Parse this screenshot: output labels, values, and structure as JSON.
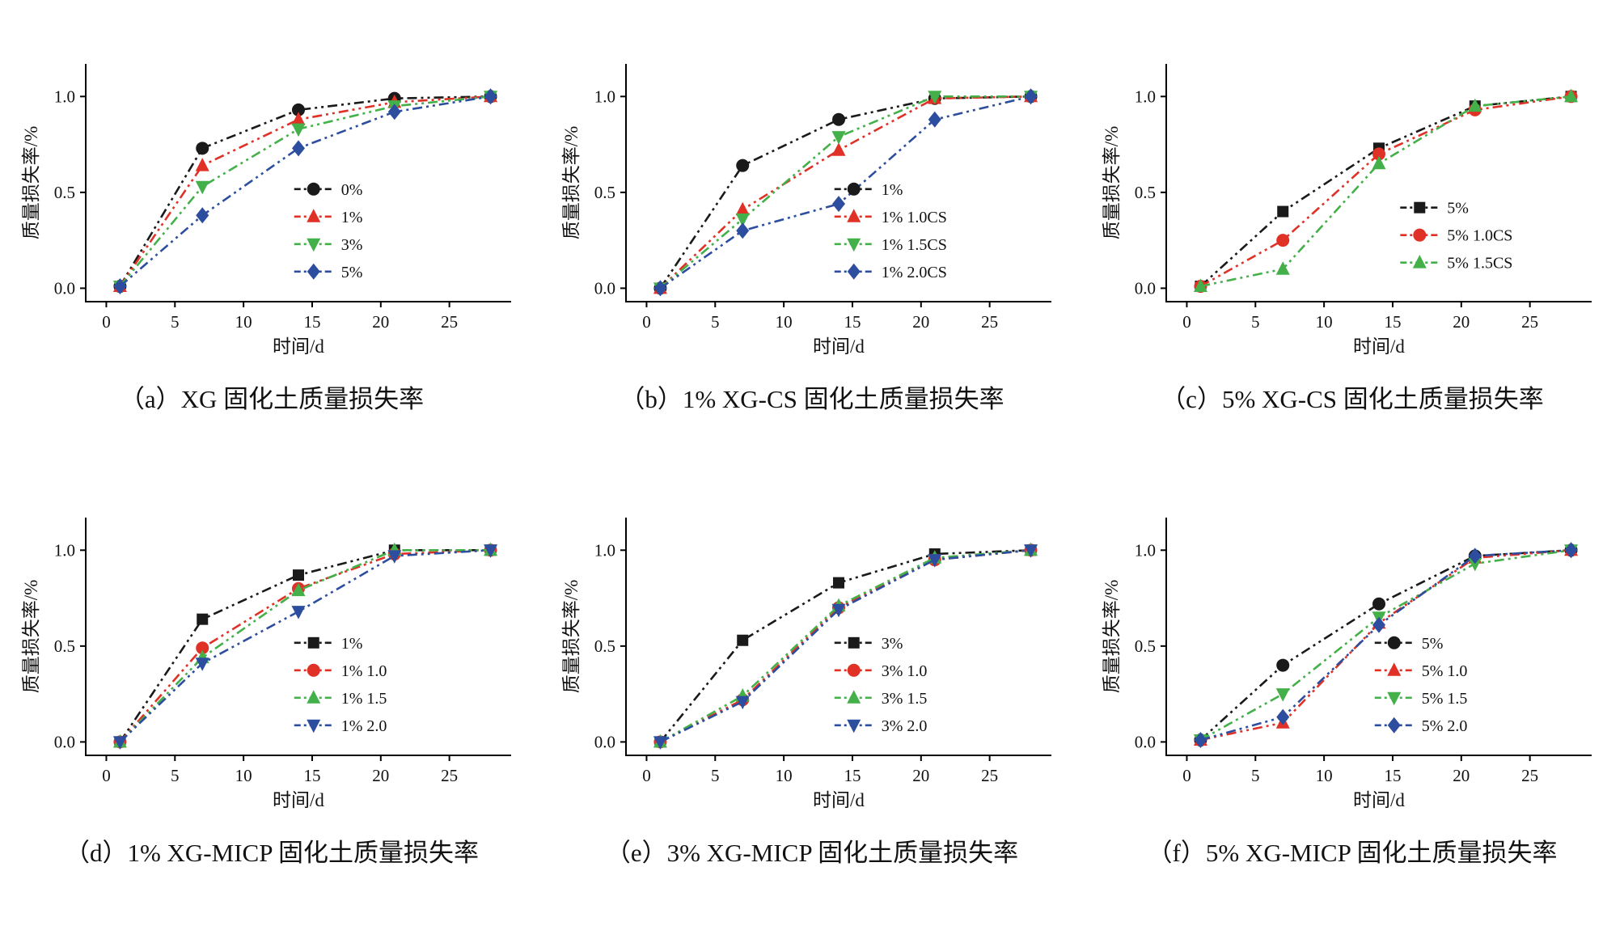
{
  "page": {
    "background": "#ffffff"
  },
  "chart_data": [
    {
      "id": "a",
      "type": "line",
      "caption": "（a）XG 固化土质量损失率",
      "xlabel": "时间/d",
      "ylabel": "质量损失率/%",
      "x_ticks": [
        0,
        5,
        10,
        15,
        20,
        25
      ],
      "y_ticks": [
        0,
        0.5,
        1
      ],
      "xlim": [
        -1.5,
        29.5
      ],
      "ylim": [
        -0.07,
        1.17
      ],
      "grid": false,
      "legend": {
        "fx": 0.49,
        "fy": 0.7
      },
      "x": [
        1,
        7,
        14,
        21,
        28
      ],
      "series": [
        {
          "name": "0%",
          "color": "#1a1a1a",
          "marker": "circle",
          "values": [
            0.01,
            0.73,
            0.93,
            0.99,
            1.0
          ]
        },
        {
          "name": "1%",
          "color": "#e03127",
          "marker": "triangle-up",
          "values": [
            0.01,
            0.64,
            0.88,
            0.97,
            1.0
          ]
        },
        {
          "name": "3%",
          "color": "#44b049",
          "marker": "triangle-down",
          "values": [
            0.01,
            0.53,
            0.83,
            0.95,
            1.0
          ]
        },
        {
          "name": "5%",
          "color": "#2d4e9e",
          "marker": "diamond",
          "values": [
            0.01,
            0.38,
            0.73,
            0.92,
            1.0
          ]
        }
      ]
    },
    {
      "id": "b",
      "type": "line",
      "caption": "（b）1% XG-CS 固化土质量损失率",
      "xlabel": "时间/d",
      "ylabel": "质量损失率/%",
      "x_ticks": [
        0,
        5,
        10,
        15,
        20,
        25
      ],
      "y_ticks": [
        0,
        0.5,
        1
      ],
      "xlim": [
        -1.5,
        29.5
      ],
      "ylim": [
        -0.07,
        1.17
      ],
      "grid": false,
      "legend": {
        "fx": 0.49,
        "fy": 0.7
      },
      "x": [
        1,
        7,
        14,
        21,
        28
      ],
      "series": [
        {
          "name": "1%",
          "color": "#1a1a1a",
          "marker": "circle",
          "values": [
            0.0,
            0.64,
            0.88,
            0.99,
            1.0
          ]
        },
        {
          "name": "1% 1.0CS",
          "color": "#e03127",
          "marker": "triangle-up",
          "values": [
            0.0,
            0.41,
            0.72,
            0.99,
            1.0
          ]
        },
        {
          "name": "1% 1.5CS",
          "color": "#44b049",
          "marker": "triangle-down",
          "values": [
            0.0,
            0.36,
            0.79,
            1.0,
            1.0
          ]
        },
        {
          "name": "1% 2.0CS",
          "color": "#2d4e9e",
          "marker": "diamond",
          "values": [
            0.0,
            0.3,
            0.44,
            0.88,
            1.0
          ]
        }
      ]
    },
    {
      "id": "c",
      "type": "line",
      "caption": "（c）5% XG-CS 固化土质量损失率",
      "xlabel": "时间/d",
      "ylabel": "质量损失率/%",
      "x_ticks": [
        0,
        5,
        10,
        15,
        20,
        25
      ],
      "y_ticks": [
        0,
        0.5,
        1
      ],
      "xlim": [
        -1.5,
        29.5
      ],
      "ylim": [
        -0.07,
        1.17
      ],
      "grid": false,
      "legend": {
        "fx": 0.55,
        "fy": 0.72
      },
      "x": [
        1,
        7,
        14,
        21,
        28
      ],
      "series": [
        {
          "name": "5%",
          "color": "#1a1a1a",
          "marker": "square",
          "values": [
            0.01,
            0.4,
            0.73,
            0.95,
            1.0
          ]
        },
        {
          "name": "5% 1.0CS",
          "color": "#e03127",
          "marker": "circle",
          "values": [
            0.01,
            0.25,
            0.7,
            0.93,
            1.0
          ]
        },
        {
          "name": "5% 1.5CS",
          "color": "#44b049",
          "marker": "triangle-up",
          "values": [
            0.01,
            0.1,
            0.65,
            0.95,
            1.0
          ]
        }
      ]
    },
    {
      "id": "d",
      "type": "line",
      "caption": "（d）1% XG-MICP 固化土质量损失率",
      "xlabel": "时间/d",
      "ylabel": "质量损失率/%",
      "x_ticks": [
        0,
        5,
        10,
        15,
        20,
        25
      ],
      "y_ticks": [
        0,
        0.5,
        1
      ],
      "xlim": [
        -1.5,
        29.5
      ],
      "ylim": [
        -0.07,
        1.17
      ],
      "grid": false,
      "legend": {
        "fx": 0.49,
        "fy": 0.7
      },
      "x": [
        1,
        7,
        14,
        21,
        28
      ],
      "series": [
        {
          "name": "1%",
          "color": "#1a1a1a",
          "marker": "square",
          "values": [
            0.0,
            0.64,
            0.87,
            1.0,
            1.0
          ]
        },
        {
          "name": "1% 1.0",
          "color": "#e03127",
          "marker": "circle",
          "values": [
            0.0,
            0.49,
            0.8,
            0.98,
            1.0
          ]
        },
        {
          "name": "1% 1.5",
          "color": "#44b049",
          "marker": "triangle-up",
          "values": [
            0.0,
            0.44,
            0.79,
            1.0,
            1.0
          ]
        },
        {
          "name": "1% 2.0",
          "color": "#2d4e9e",
          "marker": "triangle-down",
          "values": [
            0.0,
            0.41,
            0.68,
            0.97,
            1.0
          ]
        }
      ]
    },
    {
      "id": "e",
      "type": "line",
      "caption": "（e）3% XG-MICP 固化土质量损失率",
      "xlabel": "时间/d",
      "ylabel": "质量损失率/%",
      "x_ticks": [
        0,
        5,
        10,
        15,
        20,
        25
      ],
      "y_ticks": [
        0,
        0.5,
        1
      ],
      "xlim": [
        -1.5,
        29.5
      ],
      "ylim": [
        -0.07,
        1.17
      ],
      "grid": false,
      "legend": {
        "fx": 0.49,
        "fy": 0.7
      },
      "x": [
        1,
        7,
        14,
        21,
        28
      ],
      "series": [
        {
          "name": "3%",
          "color": "#1a1a1a",
          "marker": "square",
          "values": [
            0.0,
            0.53,
            0.83,
            0.98,
            1.0
          ]
        },
        {
          "name": "3% 1.0",
          "color": "#e03127",
          "marker": "circle",
          "values": [
            0.0,
            0.22,
            0.7,
            0.95,
            1.0
          ]
        },
        {
          "name": "3% 1.5",
          "color": "#44b049",
          "marker": "triangle-up",
          "values": [
            0.0,
            0.24,
            0.71,
            0.96,
            1.0
          ]
        },
        {
          "name": "3% 2.0",
          "color": "#2d4e9e",
          "marker": "triangle-down",
          "values": [
            0.0,
            0.21,
            0.69,
            0.95,
            1.0
          ]
        }
      ]
    },
    {
      "id": "f",
      "type": "line",
      "caption": "（f）5% XG-MICP 固化土质量损失率",
      "xlabel": "时间/d",
      "ylabel": "质量损失率/%",
      "x_ticks": [
        0,
        5,
        10,
        15,
        20,
        25
      ],
      "y_ticks": [
        0,
        0.5,
        1
      ],
      "xlim": [
        -1.5,
        29.5
      ],
      "ylim": [
        -0.07,
        1.17
      ],
      "grid": false,
      "legend": {
        "fx": 0.49,
        "fy": 0.7
      },
      "x": [
        1,
        7,
        14,
        21,
        28
      ],
      "series": [
        {
          "name": "5%",
          "color": "#1a1a1a",
          "marker": "circle",
          "values": [
            0.01,
            0.4,
            0.72,
            0.97,
            1.0
          ]
        },
        {
          "name": "5% 1.0",
          "color": "#e03127",
          "marker": "triangle-up",
          "values": [
            0.01,
            0.1,
            0.62,
            0.96,
            1.0
          ]
        },
        {
          "name": "5% 1.5",
          "color": "#44b049",
          "marker": "triangle-down",
          "values": [
            0.01,
            0.25,
            0.65,
            0.93,
            1.0
          ]
        },
        {
          "name": "5% 2.0",
          "color": "#2d4e9e",
          "marker": "diamond",
          "values": [
            0.01,
            0.13,
            0.61,
            0.97,
            1.0
          ]
        }
      ]
    }
  ]
}
